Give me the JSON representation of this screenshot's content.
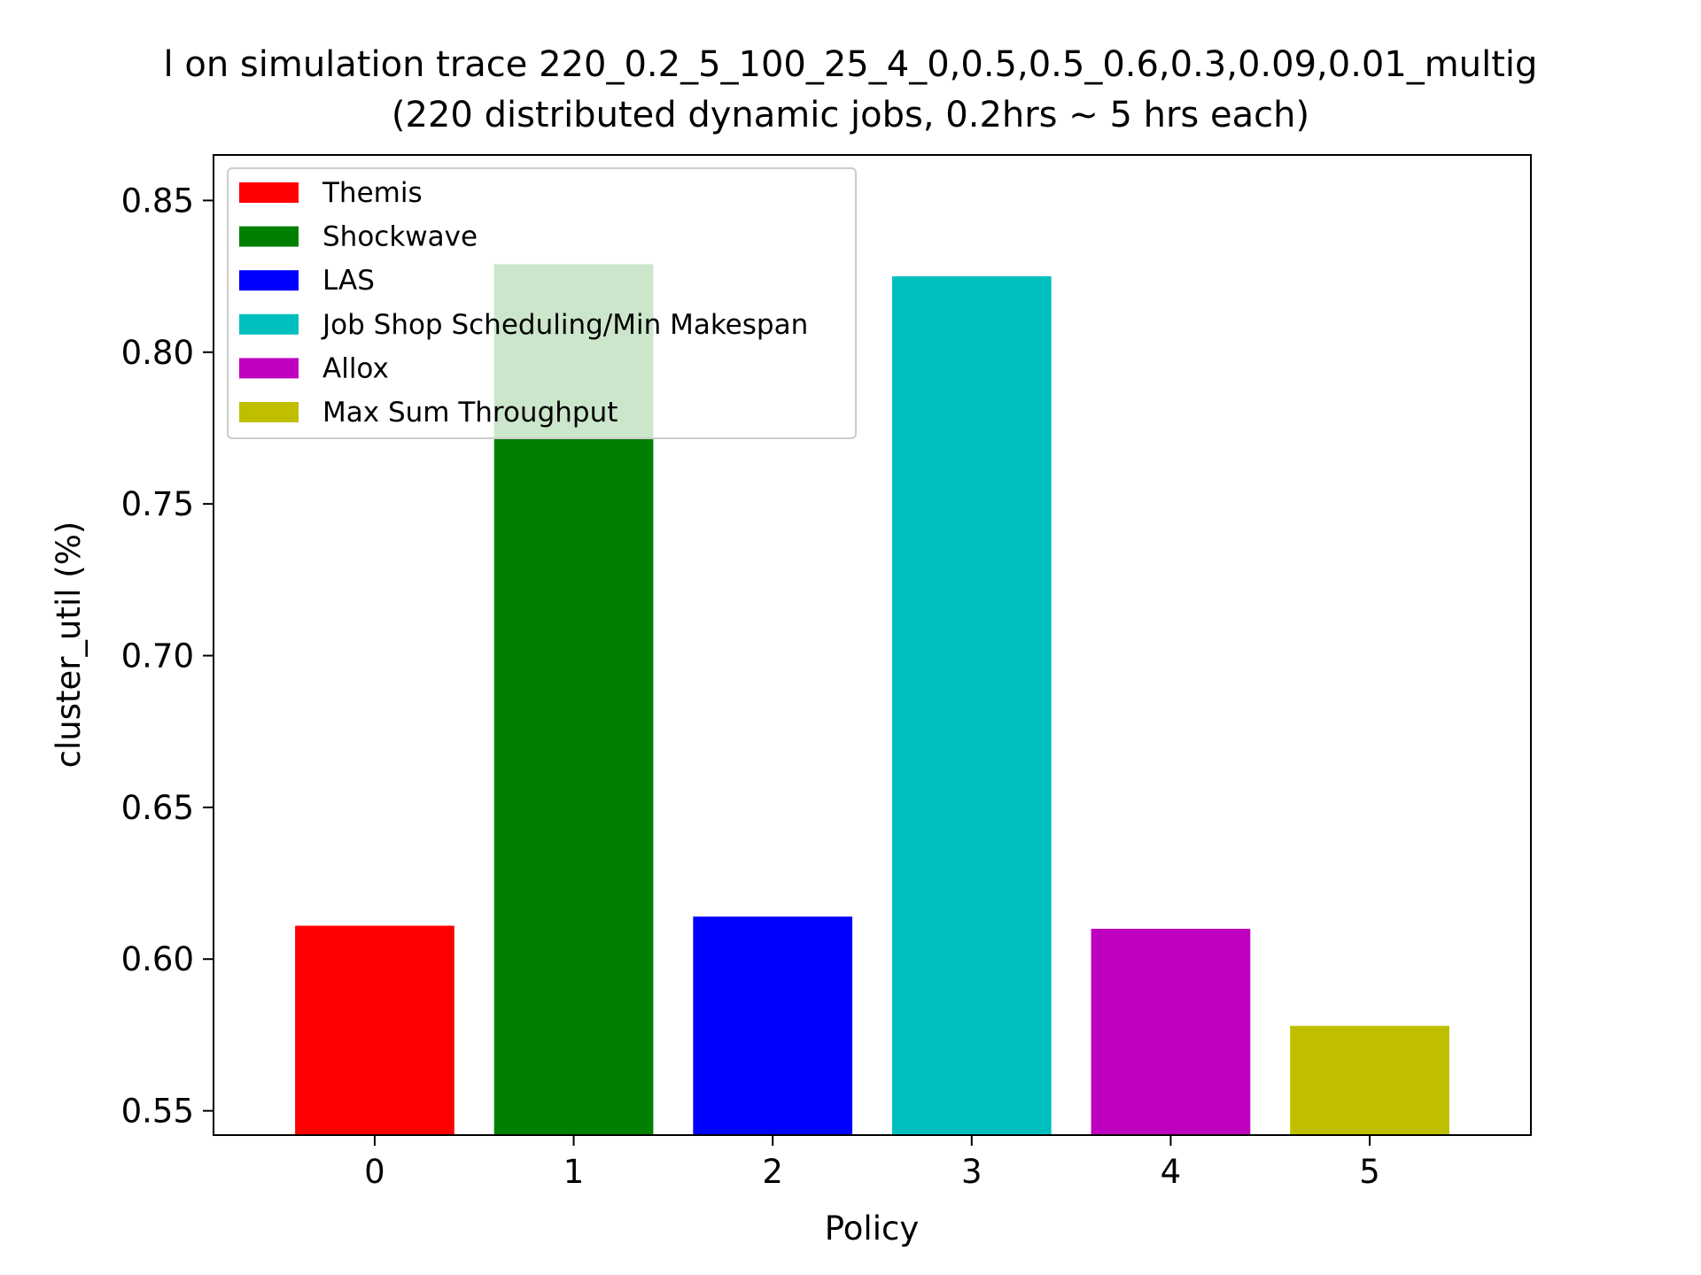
{
  "chart_data": {
    "type": "bar",
    "title_line1": "l on simulation trace 220_0.2_5_100_25_4_0,0.5,0.5_0.6,0.3,0.09,0.01_multig",
    "title_line2": "(220 distributed dynamic jobs, 0.2hrs ~ 5 hrs each)",
    "xlabel": "Policy",
    "ylabel": "cluster_util (%)",
    "categories": [
      "0",
      "1",
      "2",
      "3",
      "4",
      "5"
    ],
    "series": [
      {
        "name": "Themis",
        "category": "0",
        "value": 0.611,
        "color": "#ff0000"
      },
      {
        "name": "Shockwave",
        "category": "1",
        "value": 0.829,
        "color": "#008000"
      },
      {
        "name": "LAS",
        "category": "2",
        "value": 0.614,
        "color": "#0000ff"
      },
      {
        "name": "Job Shop Scheduling/Min Makespan",
        "category": "3",
        "value": 0.825,
        "color": "#00bfbf"
      },
      {
        "name": "Allox",
        "category": "4",
        "value": 0.61,
        "color": "#bf00bf"
      },
      {
        "name": "Max Sum Throughput",
        "category": "5",
        "value": 0.578,
        "color": "#bfbf00"
      }
    ],
    "ylim": [
      0.542,
      0.865
    ],
    "yticks": [
      "0.55",
      "0.60",
      "0.65",
      "0.70",
      "0.75",
      "0.80",
      "0.85"
    ],
    "grid": false,
    "legend_position": "top-left"
  }
}
